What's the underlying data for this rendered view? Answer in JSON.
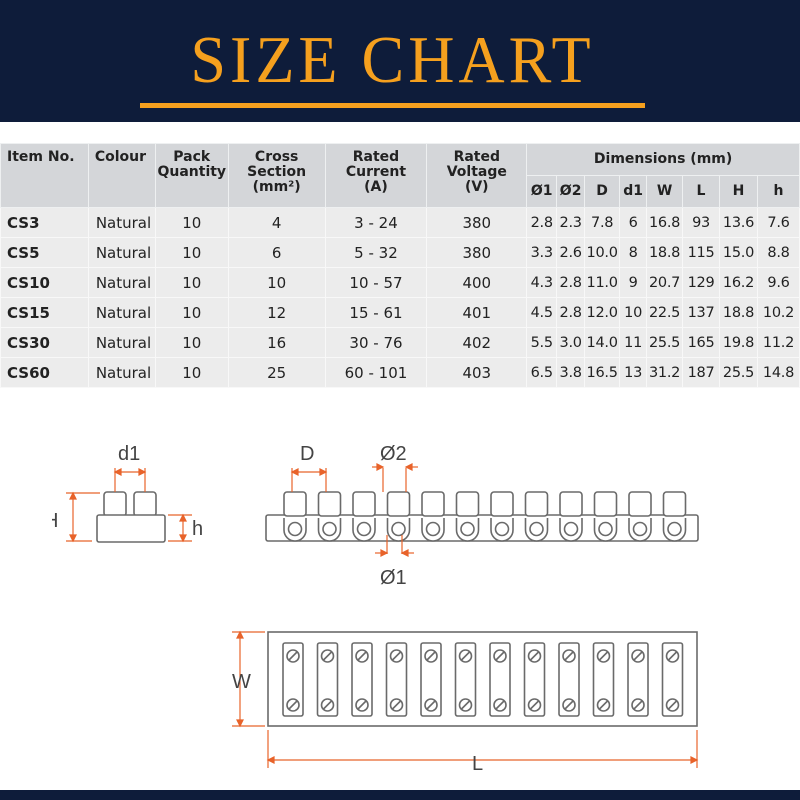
{
  "title": "SIZE CHART",
  "colors": {
    "banner": "#0e1c3a",
    "accent": "#f5a01e",
    "dimension_lines": "#e8632a"
  },
  "table": {
    "headers": [
      "Item No.",
      "Colour",
      "Pack Quantity",
      "Cross Section (mm²)",
      "Rated Current (A)",
      "Rated Voltage (V)"
    ],
    "header_lines": [
      [
        "Item No."
      ],
      [
        "Colour"
      ],
      [
        "Pack",
        "Quantity"
      ],
      [
        "Cross",
        "Section",
        "(mm²)"
      ],
      [
        "Rated",
        "Current",
        "(A)"
      ],
      [
        "Rated",
        "Voltage",
        "(V)"
      ]
    ],
    "group_header": "Dimensions (mm)",
    "dim_headers": [
      "Ø1",
      "Ø2",
      "D",
      "d1",
      "W",
      "L",
      "H",
      "h"
    ],
    "rows": [
      [
        "CS3",
        "Natural",
        "10",
        "4",
        "3 - 24",
        "380",
        "2.8",
        "2.3",
        "7.8",
        "6",
        "16.8",
        "93",
        "13.6",
        "7.6"
      ],
      [
        "CS5",
        "Natural",
        "10",
        "6",
        "5 - 32",
        "380",
        "3.3",
        "2.6",
        "10.0",
        "8",
        "18.8",
        "115",
        "15.0",
        "8.8"
      ],
      [
        "CS10",
        "Natural",
        "10",
        "10",
        "10 - 57",
        "400",
        "4.3",
        "2.8",
        "11.0",
        "9",
        "20.7",
        "129",
        "16.2",
        "9.6"
      ],
      [
        "CS15",
        "Natural",
        "10",
        "12",
        "15 - 61",
        "401",
        "4.5",
        "2.8",
        "12.0",
        "10",
        "22.5",
        "137",
        "18.8",
        "10.2"
      ],
      [
        "CS30",
        "Natural",
        "10",
        "16",
        "30 - 76",
        "402",
        "5.5",
        "3.0",
        "14.0",
        "11",
        "25.5",
        "165",
        "19.8",
        "11.2"
      ],
      [
        "CS60",
        "Natural",
        "10",
        "25",
        "60 - 101",
        "403",
        "6.5",
        "3.8",
        "16.5",
        "13",
        "31.2",
        "187",
        "25.5",
        "14.8"
      ]
    ]
  },
  "diagram": {
    "labels": {
      "d1": "d1",
      "H": "H",
      "h": "h",
      "D": "D",
      "o2": "Ø2",
      "o1": "Ø1",
      "W": "W",
      "L": "L"
    },
    "terminal_count": 12
  }
}
